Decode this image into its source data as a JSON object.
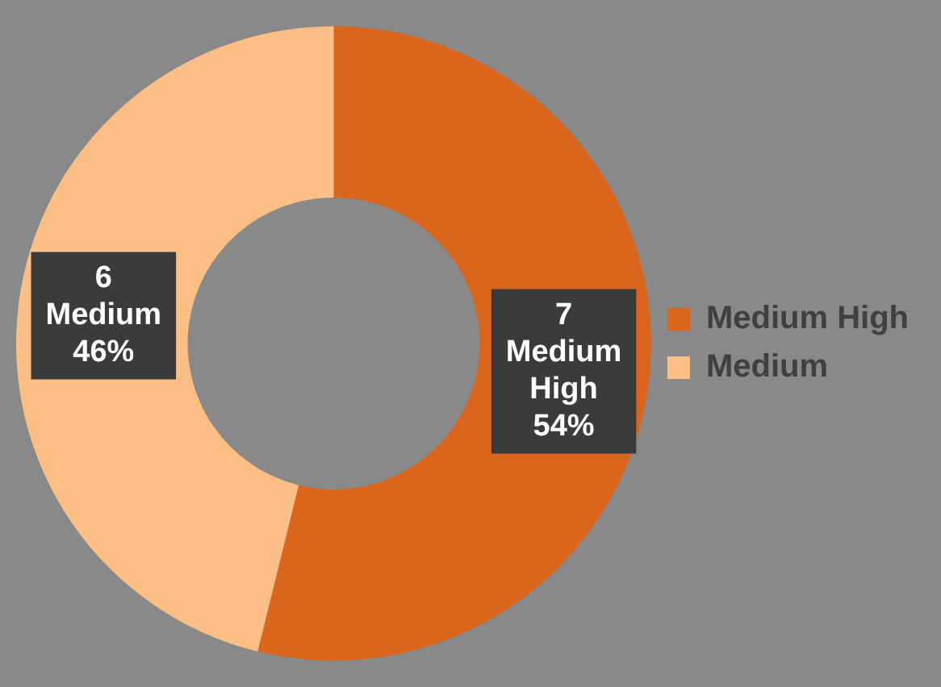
{
  "chart_data": {
    "type": "donut",
    "categories": [
      "Medium High",
      "Medium"
    ],
    "values": [
      7,
      6
    ],
    "colors": [
      "#d9661c",
      "#fbbf85"
    ],
    "value_labels": [
      "7\nMedium\nHigh\n54%",
      "6\nMedium\n46%"
    ],
    "legend": "right"
  }
}
